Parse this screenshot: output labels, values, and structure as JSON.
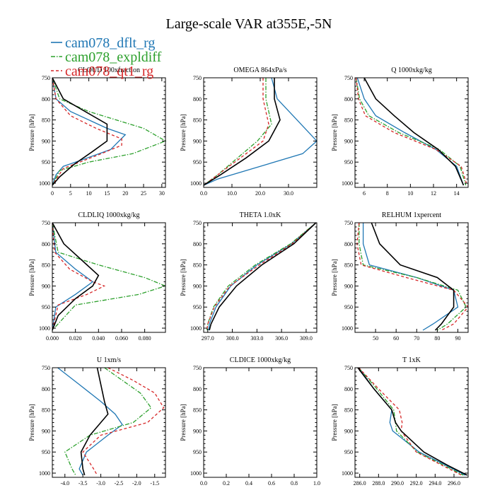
{
  "title": "Large-scale VAR at355E,-5N",
  "legend": [
    {
      "name": "cam078_dflt_rg",
      "color": "#1f77b4",
      "dash": "solid"
    },
    {
      "name": "cam078_expldiff",
      "color": "#2ca02c",
      "dash": "dashdot"
    },
    {
      "name": "cam078_qt1_rg",
      "color": "#d62728",
      "dash": "dash"
    },
    {
      "name": "",
      "color": "#000000",
      "dash": "solid"
    }
  ],
  "chart_data": [
    {
      "type": "line",
      "title": "CLOUD 100xfraction",
      "ylabel": "Pressure [hPa]",
      "xlim": [
        0,
        31
      ],
      "ylim": [
        750,
        1010
      ],
      "xticks": [
        0,
        5,
        10,
        15,
        20,
        25,
        30
      ],
      "xtick_labels": [
        "0",
        "5",
        "10",
        "15",
        "20",
        "25",
        "30"
      ],
      "yticks": [
        750,
        800,
        850,
        900,
        950,
        1000
      ],
      "series": [
        {
          "x": [
            0,
            1,
            5,
            15,
            20,
            16,
            8,
            3,
            1,
            0
          ],
          "y": [
            750,
            800,
            830,
            870,
            885,
            920,
            945,
            960,
            980,
            1005
          ]
        },
        {
          "x": [
            0,
            2,
            10,
            25,
            31,
            22,
            10,
            2,
            0
          ],
          "y": [
            750,
            800,
            830,
            870,
            900,
            930,
            950,
            970,
            1005
          ]
        },
        {
          "x": [
            0,
            1,
            5,
            12,
            19,
            19,
            12,
            3,
            0
          ],
          "y": [
            750,
            800,
            840,
            870,
            895,
            910,
            935,
            965,
            1005
          ]
        },
        {
          "x": [
            0,
            3,
            10,
            15,
            15,
            11,
            6,
            2,
            0
          ],
          "y": [
            750,
            800,
            835,
            860,
            900,
            925,
            955,
            985,
            1005
          ]
        }
      ]
    },
    {
      "type": "line",
      "title": "OMEGA  864xPa/s",
      "ylabel": "Pressure [hPa]",
      "xlim": [
        0,
        40
      ],
      "ylim": [
        750,
        1010
      ],
      "xticks": [
        0,
        10,
        20,
        30
      ],
      "xtick_labels": [
        "0.0",
        "10.0",
        "20.0",
        "30.0"
      ],
      "yticks": [
        750,
        800,
        850,
        900,
        950,
        1000
      ],
      "series": [
        {
          "x": [
            24,
            26,
            33,
            40,
            35,
            20,
            5,
            0
          ],
          "y": [
            750,
            800,
            850,
            900,
            930,
            960,
            990,
            1005
          ]
        },
        {
          "x": [
            22,
            22,
            24,
            19,
            12,
            5,
            0
          ],
          "y": [
            750,
            800,
            860,
            900,
            940,
            980,
            1005
          ]
        },
        {
          "x": [
            21,
            21,
            23,
            21,
            13,
            5,
            0
          ],
          "y": [
            750,
            800,
            860,
            900,
            940,
            980,
            1005
          ]
        },
        {
          "x": [
            25,
            25,
            27,
            23,
            15,
            6,
            0
          ],
          "y": [
            750,
            800,
            850,
            900,
            940,
            980,
            1005
          ]
        }
      ]
    },
    {
      "type": "line",
      "title": "Q  1000xkg/kg",
      "ylabel": "Pressure [hPa]",
      "xlim": [
        5.2,
        15
      ],
      "ylim": [
        750,
        1010
      ],
      "xticks": [
        6,
        8,
        10,
        12,
        14
      ],
      "xtick_labels": [
        "6",
        "8",
        "10",
        "12",
        "14"
      ],
      "yticks": [
        750,
        800,
        850,
        900,
        950,
        1000
      ],
      "series": [
        {
          "x": [
            5.4,
            6,
            7,
            9.5,
            12.2,
            14,
            14.6
          ],
          "y": [
            750,
            800,
            840,
            880,
            920,
            960,
            1005
          ]
        },
        {
          "x": [
            5.3,
            5.6,
            6.4,
            9,
            12.5,
            14.3,
            14.8
          ],
          "y": [
            750,
            800,
            840,
            880,
            920,
            960,
            1005
          ]
        },
        {
          "x": [
            5.3,
            5.5,
            6.1,
            8.6,
            12.2,
            14.4,
            14.9
          ],
          "y": [
            750,
            800,
            840,
            880,
            920,
            960,
            1005
          ]
        },
        {
          "x": [
            6,
            7,
            8.6,
            10.3,
            12.4,
            13.9,
            14.6
          ],
          "y": [
            750,
            800,
            840,
            880,
            920,
            960,
            1005
          ]
        }
      ]
    },
    {
      "type": "line",
      "title": "CLDLIQ  1000xkg/kg",
      "ylabel": "Pressure [hPa]",
      "xlim": [
        0,
        0.098
      ],
      "ylim": [
        750,
        1010
      ],
      "xticks": [
        0,
        0.02,
        0.04,
        0.06,
        0.08
      ],
      "xtick_labels": [
        "0.000",
        "0.020",
        "0.040",
        "0.060",
        "0.080"
      ],
      "yticks": [
        750,
        800,
        850,
        900,
        950,
        1000
      ],
      "series": [
        {
          "x": [
            0,
            0.003,
            0.02,
            0.035,
            0.02,
            0.003,
            0
          ],
          "y": [
            750,
            820,
            860,
            890,
            920,
            950,
            1005
          ]
        },
        {
          "x": [
            0,
            0.005,
            0.04,
            0.08,
            0.098,
            0.075,
            0.02,
            0
          ],
          "y": [
            750,
            820,
            850,
            880,
            900,
            920,
            945,
            1005
          ]
        },
        {
          "x": [
            0,
            0.002,
            0.015,
            0.035,
            0.045,
            0.03,
            0.005,
            0
          ],
          "y": [
            750,
            820,
            860,
            890,
            900,
            920,
            945,
            1005
          ]
        },
        {
          "x": [
            0,
            0.01,
            0.03,
            0.04,
            0.035,
            0.02,
            0.005,
            0
          ],
          "y": [
            750,
            800,
            850,
            875,
            900,
            930,
            970,
            1005
          ]
        }
      ]
    },
    {
      "type": "line",
      "title": "THETA  1.0xK",
      "ylabel": "Pressure [hPa]",
      "xlim": [
        296.5,
        310.3
      ],
      "ylim": [
        750,
        1010
      ],
      "xticks": [
        297,
        300,
        303,
        306,
        309
      ],
      "xtick_labels": [
        "297.0",
        "300.0",
        "303.0",
        "306.0",
        "309.0"
      ],
      "yticks": [
        750,
        800,
        850,
        900,
        950,
        1000
      ],
      "series": [
        {
          "x": [
            310.2,
            307.2,
            303,
            299.8,
            298,
            297.2,
            297.1
          ],
          "y": [
            750,
            800,
            850,
            900,
            950,
            990,
            1005
          ]
        },
        {
          "x": [
            310.2,
            307.1,
            302.8,
            299.5,
            297.7,
            297,
            296.9
          ],
          "y": [
            750,
            800,
            850,
            900,
            950,
            990,
            1005
          ]
        },
        {
          "x": [
            310.2,
            307.3,
            303.3,
            299.7,
            297.8,
            297,
            296.9
          ],
          "y": [
            750,
            800,
            850,
            900,
            950,
            990,
            1005
          ]
        },
        {
          "x": [
            310.2,
            307.5,
            303.6,
            300.5,
            298.4,
            297.4,
            297.2
          ],
          "y": [
            750,
            800,
            850,
            900,
            950,
            990,
            1005
          ]
        }
      ]
    },
    {
      "type": "line",
      "title": "RELHUM  1xpercent",
      "ylabel": "Pressure [hPa]",
      "xlim": [
        40,
        95
      ],
      "ylim": [
        750,
        1010
      ],
      "xticks": [
        50,
        60,
        70,
        80,
        90
      ],
      "xtick_labels": [
        "50",
        "60",
        "70",
        "80",
        "90"
      ],
      "yticks": [
        750,
        800,
        850,
        900,
        950,
        1000
      ],
      "series": [
        {
          "x": [
            44,
            44,
            47,
            70,
            88,
            90,
            78,
            73
          ],
          "y": [
            750,
            800,
            850,
            880,
            910,
            950,
            990,
            1005
          ]
        },
        {
          "x": [
            42,
            42,
            44,
            70,
            90,
            94,
            85,
            80
          ],
          "y": [
            750,
            800,
            850,
            880,
            910,
            950,
            990,
            1005
          ]
        },
        {
          "x": [
            42,
            41,
            43,
            65,
            88,
            95,
            88,
            82
          ],
          "y": [
            750,
            800,
            850,
            880,
            910,
            950,
            990,
            1005
          ]
        },
        {
          "x": [
            48,
            52,
            62,
            80,
            88,
            88,
            82,
            79
          ],
          "y": [
            750,
            800,
            850,
            880,
            910,
            950,
            990,
            1005
          ]
        }
      ]
    },
    {
      "type": "line",
      "title": "U  1xm/s",
      "ylabel": "Pressure [hPa]",
      "xlim": [
        -4.35,
        -1.2
      ],
      "ylim": [
        750,
        1010
      ],
      "xticks": [
        -4,
        -3.5,
        -3,
        -2.5,
        -2,
        -1.5
      ],
      "xtick_labels": [
        "-4.0",
        "-3.5",
        "-3.0",
        "-2.5",
        "-2.0",
        "-1.5"
      ],
      "yticks": [
        750,
        800,
        850,
        900,
        950,
        1000
      ],
      "series": [
        {
          "x": [
            -4.2,
            -3.6,
            -3,
            -2.6,
            -2.4,
            -2.8,
            -3.4,
            -3.6,
            -3.5
          ],
          "y": [
            750,
            790,
            830,
            860,
            885,
            910,
            950,
            990,
            1005
          ]
        },
        {
          "x": [
            -2.9,
            -2.4,
            -1.9,
            -1.6,
            -2.1,
            -3.3,
            -4,
            -3.8,
            -3.7
          ],
          "y": [
            750,
            780,
            810,
            845,
            880,
            910,
            950,
            990,
            1005
          ]
        },
        {
          "x": [
            -2.8,
            -2.1,
            -1.5,
            -1.25,
            -1.7,
            -3,
            -3.5,
            -3.2,
            -3.1
          ],
          "y": [
            750,
            780,
            810,
            845,
            880,
            910,
            950,
            990,
            1005
          ]
        },
        {
          "x": [
            -3.1,
            -3,
            -2.9,
            -2.8,
            -3.3,
            -3.55,
            -3.5,
            -3.45
          ],
          "y": [
            750,
            790,
            830,
            860,
            910,
            950,
            990,
            1005
          ]
        }
      ]
    },
    {
      "type": "line",
      "title": "CLDICE  1000xkg/kg",
      "ylabel": "Pressure [hPa]",
      "xlim": [
        0,
        1
      ],
      "ylim": [
        750,
        1010
      ],
      "xticks": [
        0,
        0.2,
        0.4,
        0.6,
        0.8,
        1
      ],
      "xtick_labels": [
        "0.0",
        "0.2",
        "0.4",
        "0.6",
        "0.8",
        "1.0"
      ],
      "yticks": [
        750,
        800,
        850,
        900,
        950,
        1000
      ],
      "series": []
    },
    {
      "type": "line",
      "title": "T  1xK",
      "ylabel": "Pressure [hPa]",
      "xlim": [
        285.5,
        297.5
      ],
      "ylim": [
        750,
        1010
      ],
      "xticks": [
        286,
        288,
        290,
        292,
        294,
        296
      ],
      "xtick_labels": [
        "286.0",
        "288.0",
        "290.0",
        "292.0",
        "294.0",
        "296.0"
      ],
      "yticks": [
        750,
        800,
        850,
        900,
        950,
        1000
      ],
      "series": [
        {
          "x": [
            285.9,
            287.5,
            289.4,
            289.2,
            289.5,
            292.3,
            295,
            297.2
          ],
          "y": [
            750,
            800,
            850,
            880,
            900,
            950,
            980,
            1005
          ]
        },
        {
          "x": [
            285.9,
            287.8,
            289.6,
            289.8,
            289.9,
            292.1,
            294.8,
            297
          ],
          "y": [
            750,
            800,
            850,
            880,
            900,
            950,
            980,
            1005
          ]
        },
        {
          "x": [
            285.9,
            288,
            290.2,
            290.5,
            290.4,
            292,
            294.6,
            296.8
          ],
          "y": [
            750,
            800,
            850,
            880,
            900,
            950,
            980,
            1005
          ]
        },
        {
          "x": [
            285.8,
            287.5,
            289.4,
            289.8,
            290.4,
            292.8,
            295.2,
            297.4
          ],
          "y": [
            750,
            800,
            850,
            880,
            900,
            950,
            980,
            1005
          ]
        }
      ]
    }
  ]
}
